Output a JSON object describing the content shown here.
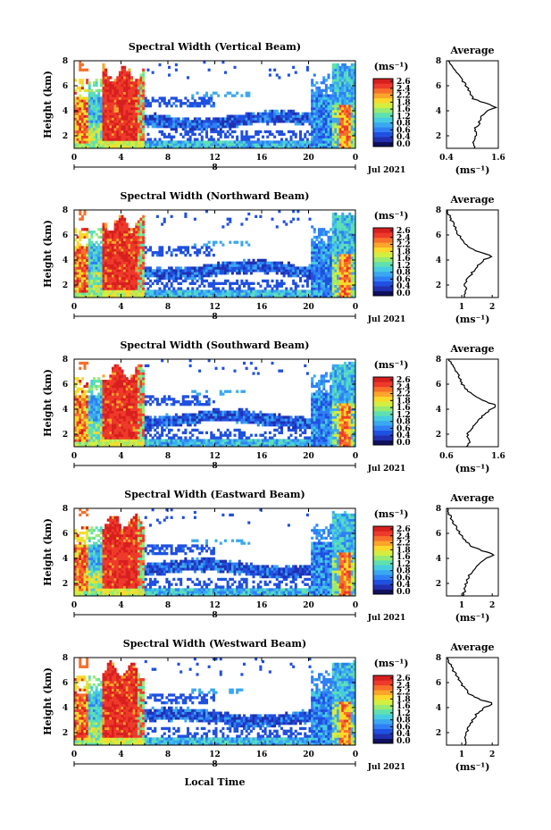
{
  "figure": {
    "xlabel": "Local Time",
    "date_label": "Jul 2021",
    "colorbar_units": "(ms⁻¹)",
    "colorbar_ticks": [
      "2.6",
      "2.4",
      "2.2",
      "1.8",
      "1.6",
      "1.2",
      "0.8",
      "0.6",
      "0.4",
      "0.0"
    ],
    "colorbar_tick_values": [
      2.6,
      2.4,
      2.2,
      1.8,
      1.6,
      1.2,
      0.8,
      0.6,
      0.4,
      0.0
    ],
    "avg_title": "Average",
    "avg_xlabel": "(ms⁻¹)",
    "height_label": "Height (km)",
    "x_ticks": [
      "0",
      "4",
      "8",
      "12",
      "16",
      "20",
      "0"
    ],
    "x_day_label": "8",
    "y_ticks": [
      "2",
      "4",
      "6",
      "8"
    ],
    "colormap": [
      "#101060",
      "#2030b0",
      "#2050e0",
      "#2f7ff5",
      "#3aa8f0",
      "#46cde0",
      "#5fe0b0",
      "#98eb70",
      "#d4ee40",
      "#fbd82a",
      "#fba52a",
      "#f7702a",
      "#ee3a2a",
      "#d81f1f"
    ]
  },
  "chart_data": [
    {
      "type": "heatmap",
      "title": "Spectral Width (Vertical Beam)",
      "xlim": [
        0,
        24
      ],
      "ylim": [
        1,
        8
      ],
      "avg_profile": {
        "xlim": [
          0.4,
          1.6
        ],
        "x_ticks": [
          "0.4",
          "1.6"
        ],
        "tick_values": [
          0.4,
          1.6
        ],
        "heights": [
          1.0,
          1.5,
          2.0,
          2.5,
          3.0,
          3.5,
          4.0,
          4.3,
          4.6,
          5.0,
          5.5,
          6.0,
          6.5,
          7.0,
          7.5,
          8.0
        ],
        "values": [
          1.05,
          1.0,
          1.1,
          1.05,
          1.15,
          1.2,
          1.35,
          1.55,
          1.3,
          1.0,
          0.95,
          0.85,
          0.75,
          0.65,
          0.55,
          0.45
        ]
      }
    },
    {
      "type": "heatmap",
      "title": "Spectral Width (Northward Beam)",
      "xlim": [
        0,
        24
      ],
      "ylim": [
        1,
        8
      ],
      "avg_profile": {
        "xlim": [
          0.5,
          2.2
        ],
        "x_ticks": [
          "1",
          "2"
        ],
        "tick_values": [
          1,
          2
        ],
        "heights": [
          1.0,
          1.5,
          2.0,
          2.5,
          3.0,
          3.5,
          4.0,
          4.3,
          4.6,
          5.0,
          5.5,
          6.0,
          6.5,
          7.0,
          7.5,
          8.0
        ],
        "values": [
          1.1,
          1.15,
          1.1,
          1.2,
          1.35,
          1.5,
          1.7,
          2.0,
          1.6,
          1.2,
          1.05,
          0.9,
          0.8,
          0.7,
          0.6,
          0.5
        ]
      }
    },
    {
      "type": "heatmap",
      "title": "Spectral Width (Southward Beam)",
      "xlim": [
        0,
        24
      ],
      "ylim": [
        1,
        8
      ],
      "avg_profile": {
        "xlim": [
          0.6,
          1.6
        ],
        "x_ticks": [
          "0.6",
          "1.6"
        ],
        "tick_values": [
          0.6,
          1.6
        ],
        "heights": [
          1.0,
          1.5,
          2.0,
          2.5,
          3.0,
          3.5,
          4.0,
          4.3,
          4.6,
          5.0,
          5.5,
          6.0,
          6.5,
          7.0,
          7.5,
          8.0
        ],
        "values": [
          1.0,
          1.05,
          1.0,
          1.1,
          1.2,
          1.3,
          1.45,
          1.58,
          1.35,
          1.15,
          1.0,
          0.9,
          0.85,
          0.8,
          0.72,
          0.65
        ]
      }
    },
    {
      "type": "heatmap",
      "title": "Spectral Width (Eastward Beam)",
      "xlim": [
        0,
        24
      ],
      "ylim": [
        1,
        8
      ],
      "avg_profile": {
        "xlim": [
          0.5,
          2.2
        ],
        "x_ticks": [
          "1",
          "2"
        ],
        "tick_values": [
          1,
          2
        ],
        "heights": [
          1.0,
          1.5,
          2.0,
          2.5,
          3.0,
          3.5,
          4.0,
          4.3,
          4.6,
          5.0,
          5.5,
          6.0,
          6.5,
          7.0,
          7.5,
          8.0
        ],
        "values": [
          1.05,
          1.1,
          1.15,
          1.2,
          1.35,
          1.55,
          1.8,
          2.1,
          1.7,
          1.3,
          1.1,
          0.95,
          0.8,
          0.7,
          0.6,
          0.5
        ]
      }
    },
    {
      "type": "heatmap",
      "title": "Spectral Width (Westward Beam)",
      "xlim": [
        0,
        24
      ],
      "ylim": [
        1,
        8
      ],
      "avg_profile": {
        "xlim": [
          0.5,
          2.2
        ],
        "x_ticks": [
          "1",
          "2"
        ],
        "tick_values": [
          1,
          2
        ],
        "heights": [
          1.0,
          1.5,
          2.0,
          2.5,
          3.0,
          3.5,
          4.0,
          4.3,
          4.6,
          5.0,
          5.5,
          6.0,
          6.5,
          7.0,
          7.5,
          8.0
        ],
        "values": [
          1.1,
          1.1,
          1.15,
          1.25,
          1.35,
          1.5,
          1.75,
          2.05,
          1.65,
          1.3,
          1.1,
          0.95,
          0.85,
          0.72,
          0.62,
          0.55
        ]
      }
    }
  ]
}
